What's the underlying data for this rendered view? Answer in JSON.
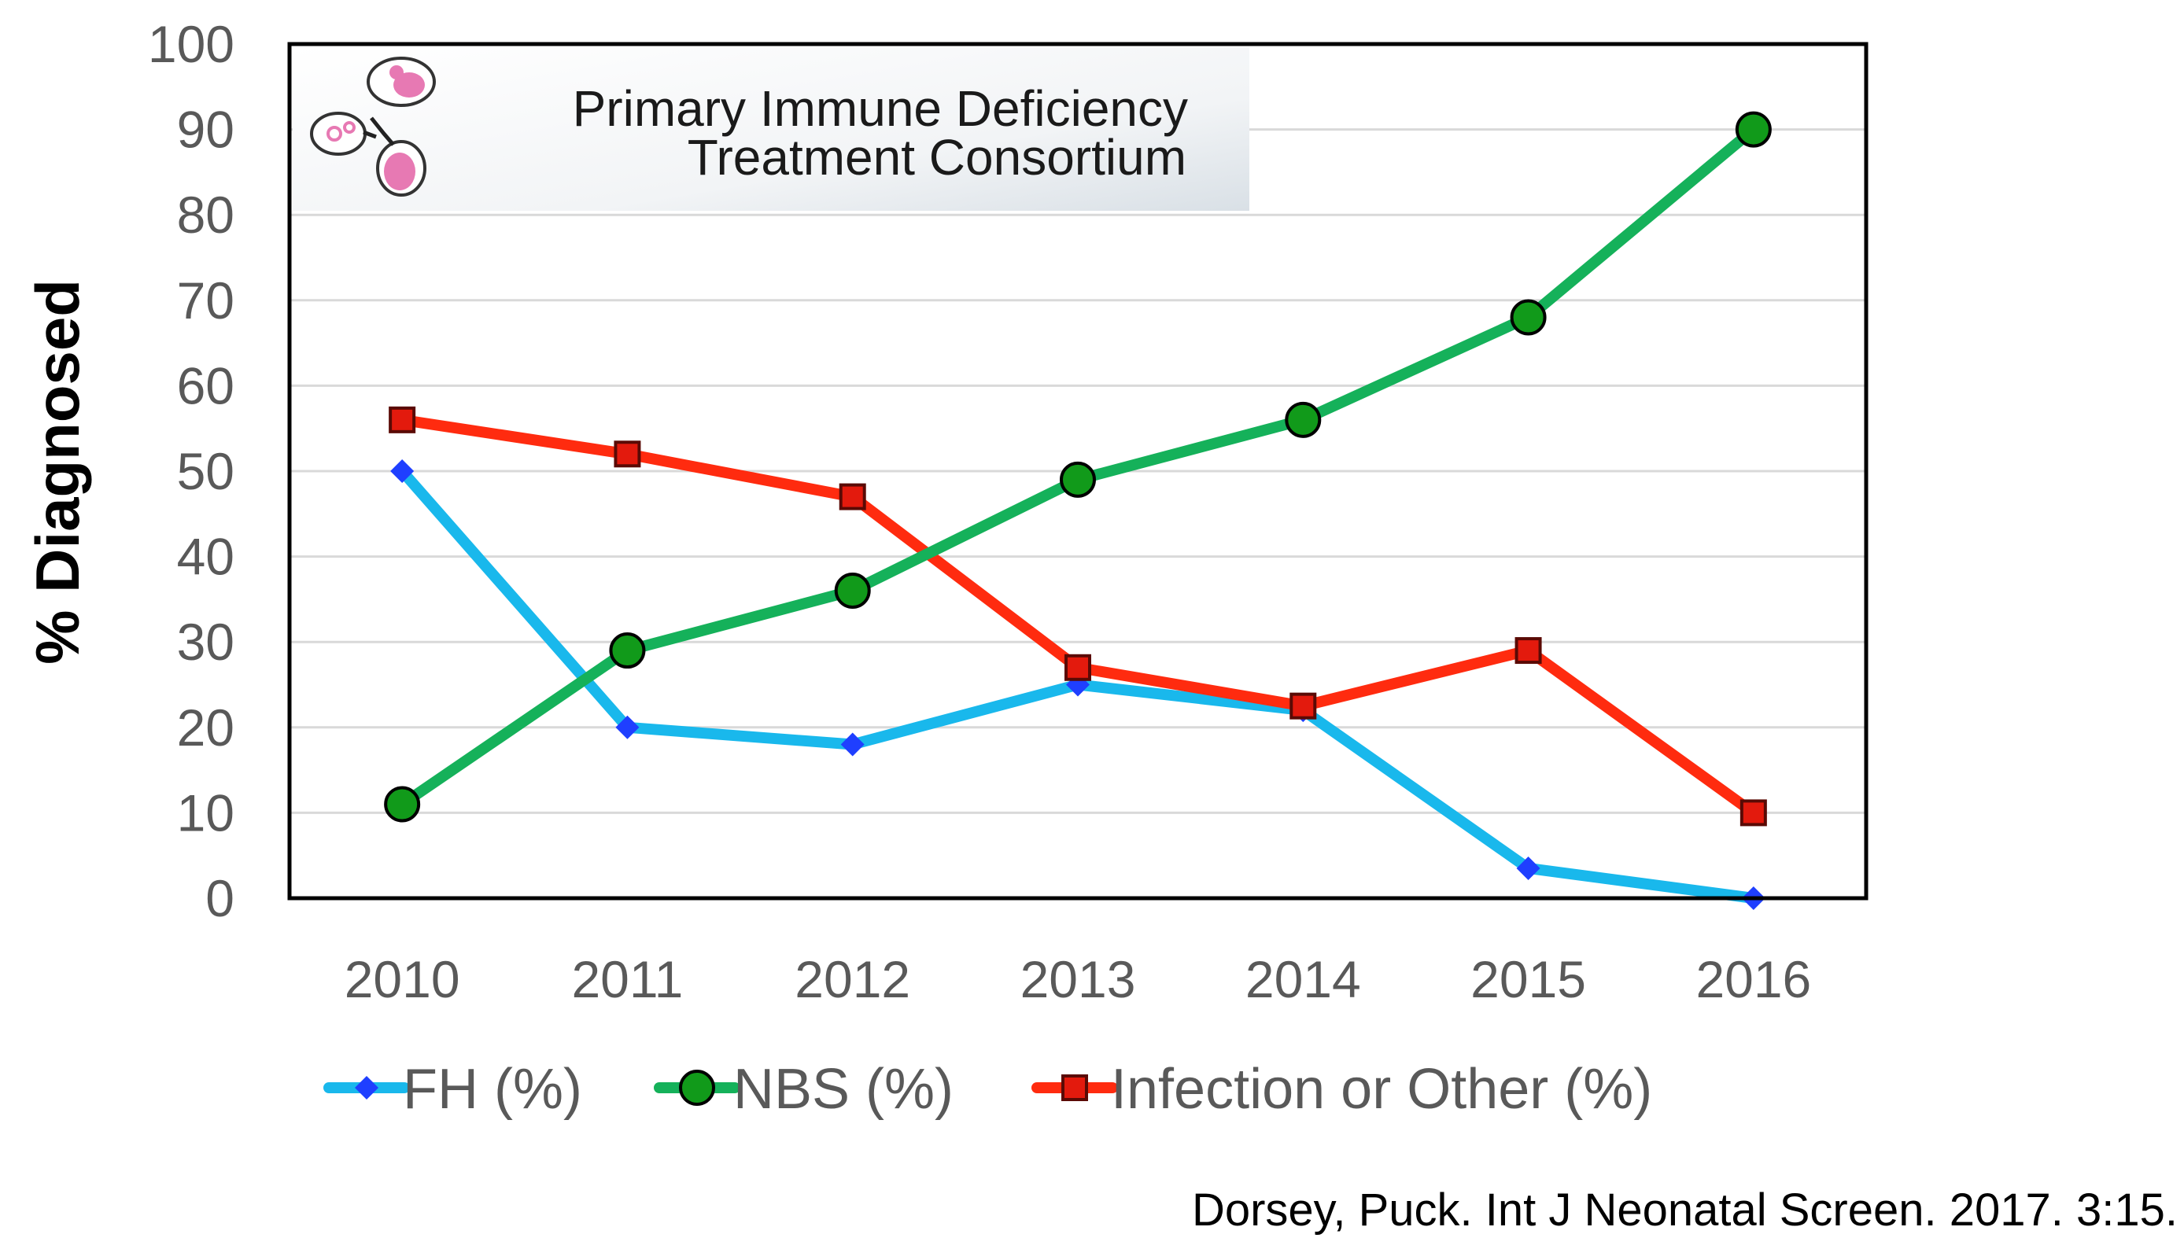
{
  "chart_data": {
    "type": "line",
    "title": "",
    "xlabel": "",
    "ylabel": "% Diagnosed",
    "ylim": [
      0,
      100
    ],
    "yticks": [
      0,
      10,
      20,
      30,
      40,
      50,
      60,
      70,
      80,
      90,
      100
    ],
    "categories": [
      "2010",
      "2011",
      "2012",
      "2013",
      "2014",
      "2015",
      "2016"
    ],
    "grid": true,
    "legend_position": "bottom",
    "series": [
      {
        "name": "FH (%)",
        "values": [
          50,
          20,
          18,
          25,
          22,
          3.5,
          0
        ],
        "color": "#19b8ec",
        "marker_color": "#1f3fff",
        "marker": "diamond"
      },
      {
        "name": "NBS (%)",
        "values": [
          11,
          29,
          36,
          49,
          56,
          68,
          90
        ],
        "color": "#15b15a",
        "marker_color": "#119a1a",
        "marker": "circle"
      },
      {
        "name": "Infection or Other (%)",
        "values": [
          56,
          52,
          47,
          27,
          22.5,
          29,
          10
        ],
        "color": "#ff2b0f",
        "marker_color": "#e31a0d",
        "marker": "square"
      }
    ]
  },
  "logo": {
    "line1": "Primary Immune Deficiency",
    "line2": "Treatment Consortium",
    "icon": "cells-icon"
  },
  "citation": "Dorsey, Puck. Int J Neonatal Screen. 2017. 3:15."
}
